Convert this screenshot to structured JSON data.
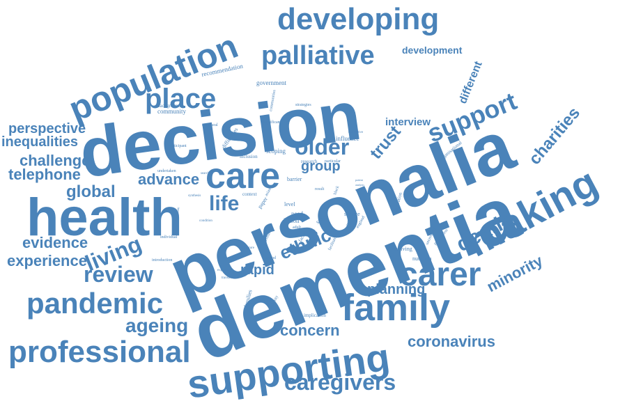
{
  "color": "#4a83b9",
  "words": [
    {
      "text": "dementia",
      "rank": 1
    },
    {
      "text": "personalia",
      "rank": 2
    },
    {
      "text": "decision",
      "rank": 3
    },
    {
      "text": "health",
      "rank": 4
    },
    {
      "text": "making",
      "rank": 5
    },
    {
      "text": "supporting",
      "rank": 6
    },
    {
      "text": "family",
      "rank": 7
    },
    {
      "text": "care",
      "rank": 8
    },
    {
      "text": "carer",
      "rank": 9
    },
    {
      "text": "population",
      "rank": 10
    },
    {
      "text": "developing",
      "rank": 11
    },
    {
      "text": "professional",
      "rank": 12
    },
    {
      "text": "pandemic",
      "rank": 13
    },
    {
      "text": "place",
      "rank": 14
    },
    {
      "text": "palliative",
      "rank": 15
    },
    {
      "text": "support",
      "rank": 16
    },
    {
      "text": "caregivers",
      "rank": 17
    },
    {
      "text": "living",
      "rank": 18
    },
    {
      "text": "review",
      "rank": 19
    },
    {
      "text": "older",
      "rank": 20
    },
    {
      "text": "life",
      "rank": 21
    },
    {
      "text": "death",
      "rank": 22
    },
    {
      "text": "ageing",
      "rank": 23
    },
    {
      "text": "coronavirus",
      "rank": 24
    },
    {
      "text": "global",
      "rank": 25
    },
    {
      "text": "minority",
      "rank": 26
    },
    {
      "text": "ethnic",
      "rank": 27
    },
    {
      "text": "charities",
      "rank": 28
    },
    {
      "text": "trust",
      "rank": 29
    },
    {
      "text": "advance",
      "rank": 30
    },
    {
      "text": "concern",
      "rank": 31
    },
    {
      "text": "evidence",
      "rank": 32
    },
    {
      "text": "experience",
      "rank": 33
    },
    {
      "text": "challenge",
      "rank": 34
    },
    {
      "text": "telephone",
      "rank": 35
    },
    {
      "text": "perspective",
      "rank": 36
    },
    {
      "text": "inequalities",
      "rank": 37
    },
    {
      "text": "rapid",
      "rank": 38
    },
    {
      "text": "group",
      "rank": 39
    },
    {
      "text": "planning",
      "rank": 40
    },
    {
      "text": "interview",
      "rank": 41
    },
    {
      "text": "different",
      "rank": 42
    },
    {
      "text": "development",
      "rank": 43
    },
    {
      "text": "recommendation",
      "rank": 44
    },
    {
      "text": "government",
      "rank": 45
    },
    {
      "text": "background",
      "rank": 46
    },
    {
      "text": "community",
      "rank": 47
    },
    {
      "text": "communities",
      "rank": 48
    },
    {
      "text": "strategies",
      "rank": 49
    },
    {
      "text": "structural",
      "rank": 50
    },
    {
      "text": "difficulties",
      "rank": 51
    },
    {
      "text": "significant",
      "rank": 52
    },
    {
      "text": "participant",
      "rank": 53
    },
    {
      "text": "inclusion",
      "rank": 54
    },
    {
      "text": "scoping",
      "rank": 55
    },
    {
      "text": "influence",
      "rank": 56
    },
    {
      "text": "qualitative",
      "rank": 57
    },
    {
      "text": "organisational",
      "rank": 58
    },
    {
      "text": "undertaken",
      "rank": 59
    },
    {
      "text": "searches",
      "rank": 60
    },
    {
      "text": "research",
      "rank": 61
    },
    {
      "text": "particular",
      "rank": 62
    },
    {
      "text": "barrier",
      "rank": 63
    },
    {
      "text": "asian",
      "rank": 64
    },
    {
      "text": "black",
      "rank": 65
    },
    {
      "text": "hydration",
      "rank": 66
    },
    {
      "text": "result",
      "rank": 67
    },
    {
      "text": "synthesis",
      "rank": 68
    },
    {
      "text": "healthcare",
      "rank": 69
    },
    {
      "text": "context",
      "rank": 70
    },
    {
      "text": "paper",
      "rank": 71
    },
    {
      "text": "level",
      "rank": 72
    },
    {
      "text": "need",
      "rank": 73
    },
    {
      "text": "lesson",
      "rank": 74
    },
    {
      "text": "study",
      "rank": 75
    },
    {
      "text": "adult",
      "rank": 76
    },
    {
      "text": "factor",
      "rank": 77
    },
    {
      "text": "service",
      "rank": 78
    },
    {
      "text": "theme",
      "rank": 79
    },
    {
      "text": "england",
      "rank": 80
    },
    {
      "text": "condition",
      "rank": 81
    },
    {
      "text": "individual",
      "rank": 82
    },
    {
      "text": "current",
      "rank": 83
    },
    {
      "text": "facilitator",
      "rank": 84
    },
    {
      "text": "uncertainty",
      "rank": 85
    },
    {
      "text": "progression",
      "rank": 86
    },
    {
      "text": "receiving",
      "rank": 87
    },
    {
      "text": "nutrition",
      "rank": 88
    },
    {
      "text": "introduction",
      "rank": 89
    },
    {
      "text": "literature",
      "rank": 90
    },
    {
      "text": "method",
      "rank": 91
    },
    {
      "text": "exploring",
      "rank": 92
    },
    {
      "text": "transition",
      "rank": 93
    },
    {
      "text": "families",
      "rank": 94
    },
    {
      "text": "authority",
      "rank": 95
    },
    {
      "text": "implication",
      "rank": 96
    },
    {
      "text": "patient",
      "rank": 97
    },
    {
      "text": "analysis",
      "rank": 98
    },
    {
      "text": "system",
      "rank": 99
    }
  ]
}
